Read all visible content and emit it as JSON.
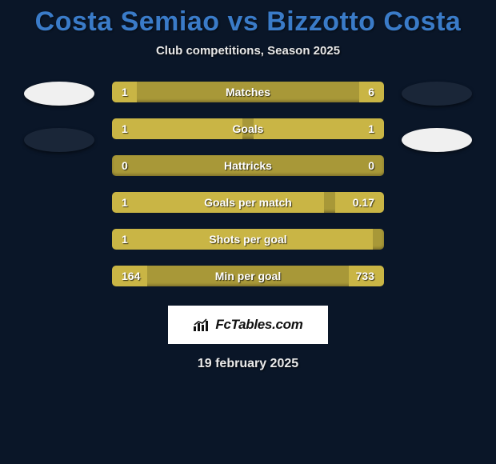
{
  "title": "Costa Semiao vs Bizzotto Costa",
  "subtitle": "Club competitions, Season 2025",
  "date": "19 february 2025",
  "watermark": "FcTables.com",
  "colors": {
    "background": "#0a1628",
    "title": "#3a7bc8",
    "bar_base": "#a89838",
    "bar_highlight": "#c9b545",
    "text": "#ffffff",
    "ellipse_light": "#f0f0f0",
    "ellipse_dark": "#1a2638",
    "watermark_bg": "#ffffff"
  },
  "side_ellipses": {
    "left": [
      "light",
      "dark"
    ],
    "right": [
      "dark",
      "light"
    ]
  },
  "rows": [
    {
      "label": "Matches",
      "left": "1",
      "right": "6",
      "left_pct": 9,
      "right_pct": 9
    },
    {
      "label": "Goals",
      "left": "1",
      "right": "1",
      "left_pct": 48,
      "right_pct": 48
    },
    {
      "label": "Hattricks",
      "left": "0",
      "right": "0",
      "left_pct": 0,
      "right_pct": 0
    },
    {
      "label": "Goals per match",
      "left": "1",
      "right": "0.17",
      "left_pct": 78,
      "right_pct": 18
    },
    {
      "label": "Shots per goal",
      "left": "1",
      "right": "",
      "left_pct": 96,
      "right_pct": 0
    },
    {
      "label": "Min per goal",
      "left": "164",
      "right": "733",
      "left_pct": 13,
      "right_pct": 13
    }
  ]
}
